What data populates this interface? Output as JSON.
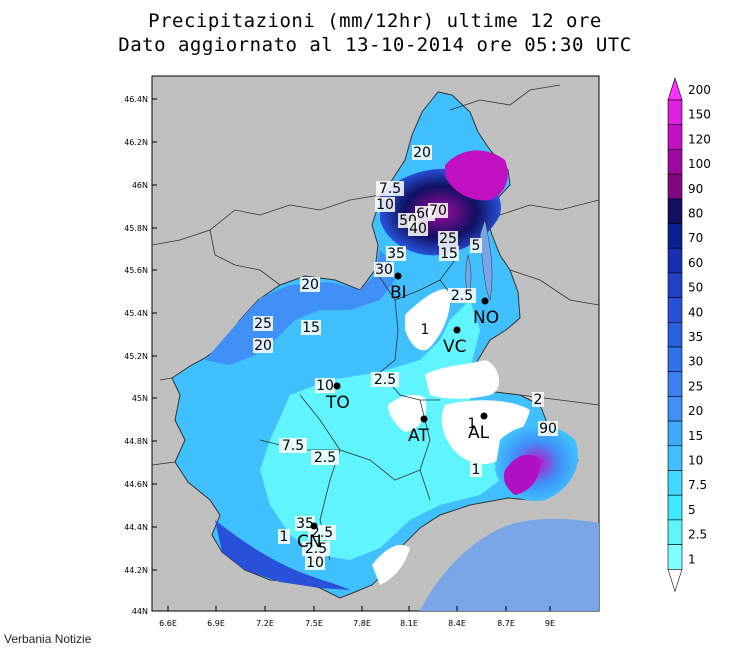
{
  "title_line1": "Precipitazioni (mm/12hr) ultime 12 ore",
  "title_line2": "Dato aggiornato al 13-10-2014 ore 05:30 UTC",
  "footer": "Verbania Notizie",
  "colors": {
    "background_gray": "#c0c0c0",
    "sea": "#7aa6e8",
    "no_rain": "#ffffff",
    "border": "#333333"
  },
  "axes": {
    "x_ticks": [
      "6.6E",
      "6.9E",
      "7.2E",
      "7.5E",
      "7.8E",
      "8.1E",
      "8.4E",
      "8.7E",
      "9E"
    ],
    "y_ticks": [
      "46.4N",
      "46.2N",
      "46N",
      "45.8N",
      "45.6N",
      "45.4N",
      "45.2N",
      "45N",
      "44.8N",
      "44.6N",
      "44.4N",
      "44.2N",
      "44N"
    ]
  },
  "legend": {
    "labels": [
      "200",
      "150",
      "120",
      "100",
      "90",
      "80",
      "70",
      "60",
      "50",
      "40",
      "35",
      "30",
      "25",
      "20",
      "15",
      "10",
      "7.5",
      "5",
      "2.5",
      "1"
    ],
    "colors": [
      "#ff30ff",
      "#e020e0",
      "#c010c0",
      "#a00aa0",
      "#800880",
      "#101060",
      "#0a2090",
      "#1830b0",
      "#2040c8",
      "#2850d8",
      "#2a60e0",
      "#3070e8",
      "#3a80f0",
      "#4090f8",
      "#40a8ff",
      "#40c0ff",
      "#40d8ff",
      "#40e8ff",
      "#60f4ff",
      "#80ffff"
    ]
  },
  "cities": [
    {
      "code": "BI"
    },
    {
      "code": "NO"
    },
    {
      "code": "VC"
    },
    {
      "code": "TO"
    },
    {
      "code": "AT"
    },
    {
      "code": "AL"
    },
    {
      "code": "CN"
    }
  ],
  "contour_labels": [
    "20",
    "7.5",
    "10",
    "60",
    "70",
    "50",
    "40",
    "35",
    "30",
    "25",
    "15",
    "5",
    "2.5",
    "20",
    "15",
    "25",
    "20",
    "1",
    "2.5",
    "10",
    "2.5",
    "1",
    "1",
    "2",
    "90",
    "7.5",
    "2.5",
    "1",
    "5",
    "2.5",
    "35",
    "10"
  ]
}
